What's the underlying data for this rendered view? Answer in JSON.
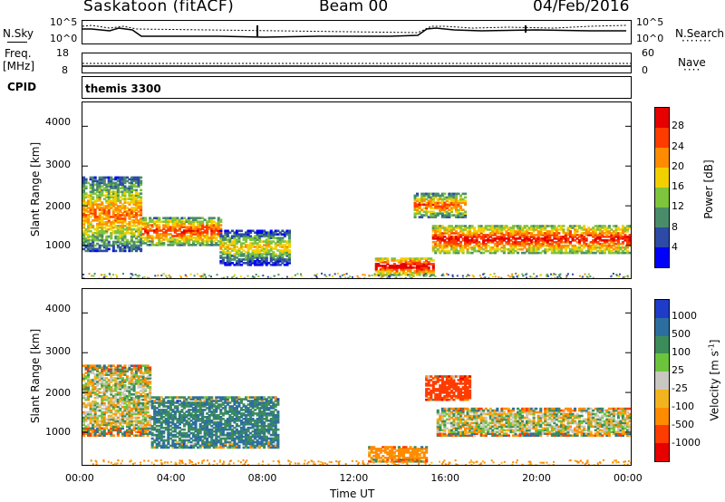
{
  "header": {
    "station": "Saskatoon  (fitACF)",
    "beam": "Beam 00",
    "date": "04/Feb/2016"
  },
  "noise_panel": {
    "left_label": "N.Sky",
    "right_label": "N.Search",
    "left_ticks": [
      "10^5",
      "10^0"
    ],
    "right_ticks": [
      "10^5",
      "10^0"
    ]
  },
  "freq_panel": {
    "left_label_1": "Freq.",
    "left_label_2": "[MHz]",
    "right_label": "Nave",
    "left_ticks": [
      "18",
      "8"
    ],
    "right_ticks": [
      "60",
      "0"
    ]
  },
  "cpid_panel": {
    "label": "CPID",
    "value": "themis 3300"
  },
  "power_panel": {
    "ylabel": "Slant Range [km]",
    "yticks": [
      "4000",
      "3000",
      "2000",
      "1000"
    ],
    "colorbar_label": "Power [dB]",
    "colorbar_ticks": [
      "28",
      "24",
      "20",
      "16",
      "12",
      "8",
      "4"
    ],
    "colors": [
      "#0000ff",
      "#2d4aa6",
      "#4a8c6a",
      "#7ec43c",
      "#f2d000",
      "#ff8c00",
      "#ff3c00",
      "#e60000"
    ]
  },
  "velocity_panel": {
    "ylabel": "Slant Range [km]",
    "yticks": [
      "4000",
      "3000",
      "2000",
      "1000"
    ],
    "colorbar_label": "Velocity [m s",
    "colorbar_label_sup": "-1",
    "colorbar_label_end": "]",
    "colorbar_ticks": [
      "1000",
      "500",
      "100",
      "25",
      "-25",
      "-100",
      "-500",
      "-1000"
    ],
    "colors": [
      "#1e3cc8",
      "#2d6ea0",
      "#3c8c5a",
      "#6cc43c",
      "#c8c8c0",
      "#f2b41e",
      "#ff8c00",
      "#ff3c00",
      "#e60000"
    ]
  },
  "x_axis": {
    "label": "Time UT",
    "ticks": [
      "00:00",
      "04:00",
      "08:00",
      "12:00",
      "16:00",
      "20:00",
      "00:00"
    ]
  },
  "chart_data": {
    "type": "heatmap",
    "title": "Saskatoon  (fitACF)   Beam 00   04/Feb/2016",
    "xlabel": "Time UT",
    "ylabel": "Slant Range [km]",
    "xlim": [
      "00:00",
      "24:00"
    ],
    "ylim": [
      180,
      4600
    ],
    "panels": [
      {
        "name": "Power [dB]",
        "colorbar_ticks": [
          28,
          24,
          20,
          16,
          12,
          8,
          4
        ],
        "features": [
          {
            "t_start": 0.0,
            "t_end": 2.6,
            "range_min": 850,
            "range_max": 2700,
            "level_dB": 16
          },
          {
            "t_start": 2.6,
            "t_end": 6.0,
            "range_min": 1000,
            "range_max": 1700,
            "level_dB": 20
          },
          {
            "t_start": 6.0,
            "t_end": 9.0,
            "range_min": 500,
            "range_max": 1400,
            "level_dB": 12
          },
          {
            "t_start": 12.8,
            "t_end": 15.3,
            "range_min": 250,
            "range_max": 700,
            "level_dB": 24
          },
          {
            "t_start": 14.5,
            "t_end": 16.8,
            "range_min": 1700,
            "range_max": 2300,
            "level_dB": 18
          },
          {
            "t_start": 15.3,
            "t_end": 24.0,
            "range_min": 800,
            "range_max": 1500,
            "level_dB": 22
          }
        ]
      },
      {
        "name": "Velocity [m s-1]",
        "colorbar_ticks": [
          1000,
          500,
          100,
          25,
          -25,
          -100,
          -500,
          -1000
        ],
        "features": [
          {
            "t_start": 0.0,
            "t_end": 3.0,
            "range_min": 900,
            "range_max": 2700,
            "velocity": 0
          },
          {
            "t_start": 3.0,
            "t_end": 8.5,
            "range_min": 600,
            "range_max": 1900,
            "velocity": 300
          },
          {
            "t_start": 12.5,
            "t_end": 15.0,
            "range_min": 250,
            "range_max": 650,
            "velocity": -150
          },
          {
            "t_start": 15.0,
            "t_end": 17.0,
            "range_min": 1800,
            "range_max": 2400,
            "velocity": -400
          },
          {
            "t_start": 15.5,
            "t_end": 24.0,
            "range_min": 900,
            "range_max": 1600,
            "velocity": 0
          }
        ]
      }
    ]
  }
}
